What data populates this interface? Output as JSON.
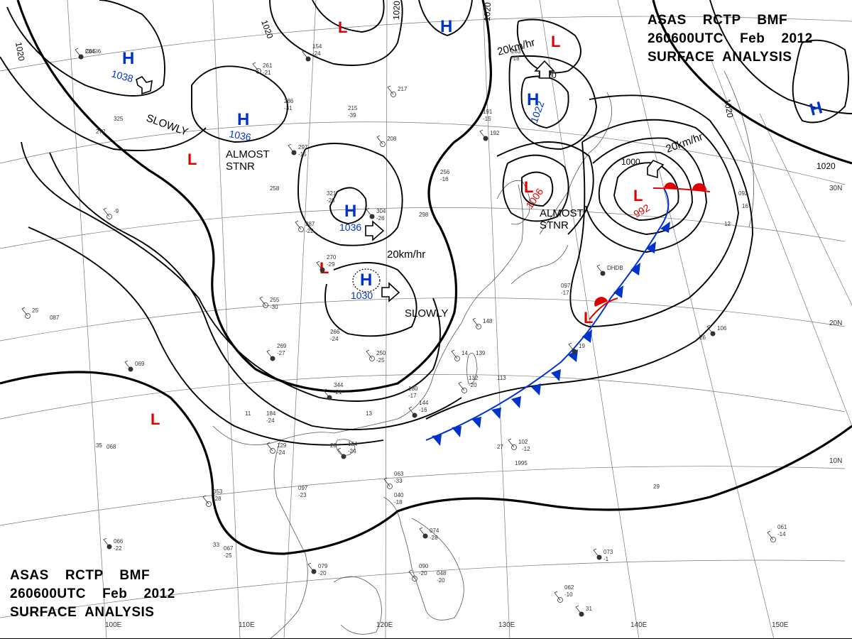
{
  "header": {
    "line1": "ASAS    RCTP    BMF",
    "line2": "260600UTC    Feb    2012",
    "line3": "SURFACE  ANALYSIS"
  },
  "footer": {
    "line1": "ASAS    RCTP    BMF",
    "line2": "260600UTC    Feb    2012",
    "line3": "SURFACE  ANALYSIS"
  },
  "longitude_labels": [
    "100E",
    "110E",
    "120E",
    "130E",
    "140E",
    "150E"
  ],
  "latitude_labels": [
    "30N",
    "20N",
    "10N"
  ],
  "isobar_labels": [
    "1020",
    "1020",
    "1020",
    "1020",
    "1020",
    "1020",
    "1000",
    "1020"
  ],
  "high_centers": [
    {
      "symbol": "H",
      "pressure": "1038"
    },
    {
      "symbol": "H",
      "pressure": "1036"
    },
    {
      "symbol": "H",
      "pressure": "1036"
    },
    {
      "symbol": "H",
      "pressure": "1030"
    },
    {
      "symbol": "H",
      "pressure": "1022"
    },
    {
      "symbol": "H",
      "pressure": ""
    },
    {
      "symbol": "H",
      "pressure": ""
    }
  ],
  "low_centers": [
    {
      "symbol": "L",
      "pressure": ""
    },
    {
      "symbol": "L",
      "pressure": ""
    },
    {
      "symbol": "L",
      "pressure": ""
    },
    {
      "symbol": "L",
      "pressure": "1006"
    },
    {
      "symbol": "L",
      "pressure": "992"
    },
    {
      "symbol": "L",
      "pressure": ""
    },
    {
      "symbol": "L",
      "pressure": ""
    }
  ],
  "motion_labels": [
    "SLOWLY",
    "ALMOST\nSTNR",
    "20km/hr",
    "SLOWLY",
    "20km/hr",
    "ALMOST\nSTNR",
    "20km/hr"
  ],
  "stations": [
    "204",
    "325",
    "272",
    "261",
    "-21",
    "154",
    "-24",
    "286",
    "-31",
    "217",
    "215",
    "-39",
    "297",
    "-15",
    "258",
    "-9",
    "321",
    "-26",
    "304",
    "-26",
    "298",
    "287",
    "-22",
    "270",
    "-29",
    "256",
    "-16",
    "208",
    "191",
    "-15",
    "192",
    "283",
    "-18",
    "255",
    "-30",
    "269",
    "-27",
    "266",
    "-24",
    "250",
    "-25",
    "344",
    "-21",
    "184",
    "-24",
    "129",
    "-24",
    "124",
    "-24",
    "139",
    "132",
    "-20",
    "113",
    "144",
    "-16",
    "180",
    "-17",
    "148",
    "097",
    "-17",
    "069",
    "087",
    "068",
    "102",
    "-12",
    "1995",
    "106",
    "092",
    "063",
    "-33",
    "040",
    "-18",
    "074",
    "-28",
    "090",
    "-20",
    "048",
    "-20",
    "073",
    "-1",
    "062",
    "-10",
    "067",
    "-25",
    "066",
    "-22",
    "053",
    "-28",
    "097",
    "-23",
    "079",
    "-20",
    "061",
    "-14",
    "29",
    "27",
    "31",
    "33",
    "35",
    "25",
    "26",
    "16",
    "19",
    "20",
    "13",
    "14",
    "11",
    "12",
    "DHDB",
    "C6SI6"
  ]
}
